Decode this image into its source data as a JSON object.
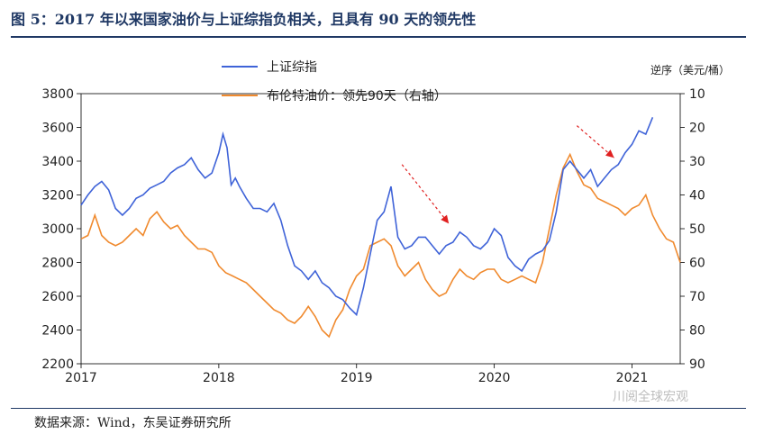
{
  "header": {
    "title": "图 5：2017 年以来国家油价与上证综指负相关，且具有 90 天的领先性"
  },
  "footer": {
    "source": "数据来源：Wind，东吴证券研究所",
    "watermark": "川阅全球宏观"
  },
  "colors": {
    "series1": "#3f63d8",
    "series2": "#f08a2e",
    "arrow": "#e02020",
    "title": "#1f3864"
  },
  "chart_data": {
    "type": "line",
    "title": "",
    "x_tick_labels": [
      "2017",
      "2018",
      "2019",
      "2020",
      "2021"
    ],
    "x_range": [
      2017.0,
      2021.35
    ],
    "left_axis": {
      "label": "",
      "range": [
        2200,
        3800
      ],
      "ticks": [
        2200,
        2400,
        2600,
        2800,
        3000,
        3200,
        3400,
        3600,
        3800
      ]
    },
    "right_axis": {
      "label": "逆序（美元/桶）",
      "range": [
        90,
        10
      ],
      "inverted": true,
      "ticks": [
        10,
        20,
        30,
        40,
        50,
        60,
        70,
        80,
        90
      ]
    },
    "legend": {
      "position": "top-left",
      "entries": [
        "上证综指",
        "布伦特油价：领先90天（右轴）"
      ]
    },
    "series": [
      {
        "name": "上证综指",
        "axis": "left",
        "color": "#3f63d8",
        "x": [
          2017.0,
          2017.05,
          2017.1,
          2017.15,
          2017.2,
          2017.25,
          2017.3,
          2017.35,
          2017.4,
          2017.45,
          2017.5,
          2017.55,
          2017.6,
          2017.65,
          2017.7,
          2017.75,
          2017.8,
          2017.85,
          2017.9,
          2017.95,
          2018.0,
          2018.03,
          2018.06,
          2018.09,
          2018.12,
          2018.15,
          2018.2,
          2018.25,
          2018.3,
          2018.35,
          2018.4,
          2018.45,
          2018.5,
          2018.55,
          2018.6,
          2018.65,
          2018.7,
          2018.75,
          2018.8,
          2018.85,
          2018.9,
          2018.95,
          2019.0,
          2019.05,
          2019.1,
          2019.15,
          2019.2,
          2019.25,
          2019.3,
          2019.35,
          2019.4,
          2019.45,
          2019.5,
          2019.55,
          2019.6,
          2019.65,
          2019.7,
          2019.75,
          2019.8,
          2019.85,
          2019.9,
          2019.95,
          2020.0,
          2020.05,
          2020.1,
          2020.15,
          2020.2,
          2020.25,
          2020.3,
          2020.35,
          2020.4,
          2020.45,
          2020.5,
          2020.55,
          2020.6,
          2020.65,
          2020.7,
          2020.75,
          2020.8,
          2020.85,
          2020.9,
          2020.95,
          2021.0,
          2021.05,
          2021.1,
          2021.15
        ],
        "values": [
          3140,
          3200,
          3250,
          3280,
          3230,
          3120,
          3080,
          3120,
          3180,
          3200,
          3240,
          3260,
          3280,
          3330,
          3360,
          3380,
          3420,
          3350,
          3300,
          3330,
          3450,
          3560,
          3480,
          3260,
          3300,
          3250,
          3180,
          3120,
          3120,
          3100,
          3150,
          3050,
          2900,
          2780,
          2750,
          2700,
          2750,
          2680,
          2650,
          2600,
          2580,
          2530,
          2490,
          2650,
          2850,
          3050,
          3100,
          3250,
          2950,
          2880,
          2900,
          2950,
          2950,
          2900,
          2850,
          2900,
          2920,
          2980,
          2950,
          2900,
          2880,
          2920,
          3000,
          2960,
          2830,
          2780,
          2750,
          2820,
          2850,
          2870,
          2930,
          3100,
          3350,
          3400,
          3350,
          3300,
          3350,
          3250,
          3300,
          3350,
          3380,
          3450,
          3500,
          3580,
          3560,
          3660
        ]
      },
      {
        "name": "布伦特油价：领先90天（右轴）",
        "axis": "right",
        "color": "#f08a2e",
        "x": [
          2017.0,
          2017.05,
          2017.1,
          2017.15,
          2017.2,
          2017.25,
          2017.3,
          2017.35,
          2017.4,
          2017.45,
          2017.5,
          2017.55,
          2017.6,
          2017.65,
          2017.7,
          2017.75,
          2017.8,
          2017.85,
          2017.9,
          2017.95,
          2018.0,
          2018.05,
          2018.1,
          2018.15,
          2018.2,
          2018.25,
          2018.3,
          2018.35,
          2018.4,
          2018.45,
          2018.5,
          2018.55,
          2018.6,
          2018.65,
          2018.7,
          2018.75,
          2018.8,
          2018.85,
          2018.9,
          2018.95,
          2019.0,
          2019.05,
          2019.1,
          2019.15,
          2019.2,
          2019.25,
          2019.3,
          2019.35,
          2019.4,
          2019.45,
          2019.5,
          2019.55,
          2019.6,
          2019.65,
          2019.7,
          2019.75,
          2019.8,
          2019.85,
          2019.9,
          2019.95,
          2020.0,
          2020.05,
          2020.1,
          2020.15,
          2020.2,
          2020.25,
          2020.3,
          2020.35,
          2020.4,
          2020.45,
          2020.5,
          2020.55,
          2020.6,
          2020.65,
          2020.7,
          2020.75,
          2020.8,
          2020.85,
          2020.9,
          2020.95,
          2021.0,
          2021.05,
          2021.1,
          2021.15,
          2021.2,
          2021.25,
          2021.3,
          2021.35
        ],
        "values": [
          53,
          52,
          46,
          52,
          54,
          55,
          54,
          52,
          50,
          52,
          47,
          45,
          48,
          50,
          49,
          52,
          54,
          56,
          56,
          57,
          61,
          63,
          64,
          65,
          66,
          68,
          70,
          72,
          74,
          75,
          77,
          78,
          76,
          73,
          76,
          80,
          82,
          77,
          74,
          68,
          64,
          62,
          55,
          54,
          53,
          55,
          61,
          64,
          62,
          60,
          65,
          68,
          70,
          69,
          65,
          62,
          64,
          65,
          63,
          62,
          62,
          65,
          66,
          65,
          64,
          65,
          66,
          60,
          50,
          40,
          32,
          28,
          33,
          37,
          38,
          41,
          42,
          43,
          44,
          46,
          44,
          43,
          40,
          46,
          50,
          53,
          54,
          60
        ]
      }
    ],
    "annotations": [
      {
        "type": "arrow",
        "from": [
          2019.33,
          3380
        ],
        "to": [
          2019.67,
          3030
        ]
      },
      {
        "type": "arrow",
        "from": [
          2020.6,
          3610
        ],
        "to": [
          2020.87,
          3420
        ]
      }
    ]
  }
}
